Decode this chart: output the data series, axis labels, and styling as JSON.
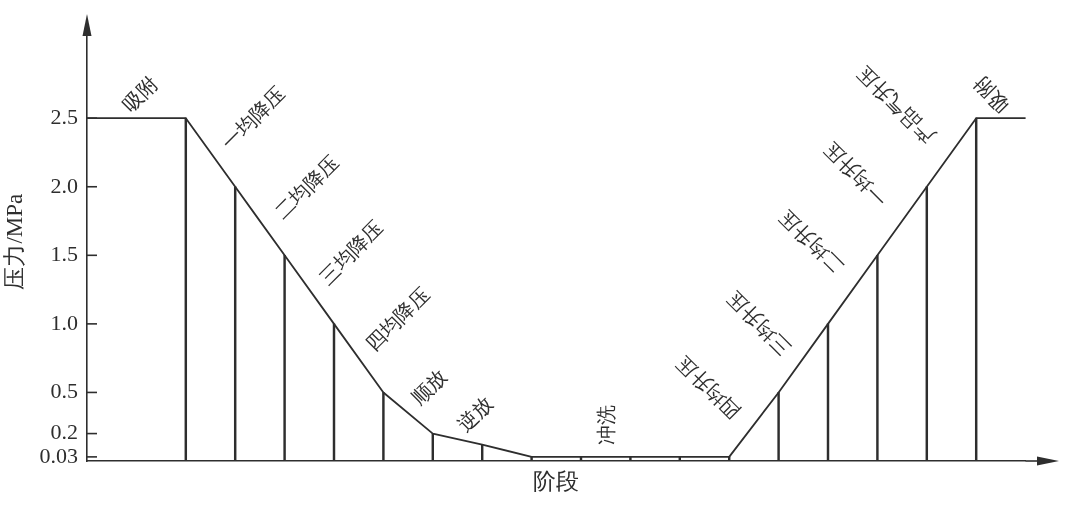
{
  "chart_data": {
    "type": "line",
    "xlabel": "阶段",
    "ylabel": "压力/MPa",
    "categories": [
      null,
      null,
      null,
      null,
      null,
      null,
      null,
      null,
      null,
      null,
      null,
      null,
      null,
      null,
      null,
      null,
      null,
      null,
      null,
      null
    ],
    "ylim": [
      0,
      3.2
    ],
    "yticks": [
      0.03,
      0.2,
      0.5,
      {
        "value": 1,
        "label": "1.0"
      },
      1.5,
      {
        "value": 2,
        "label": "2.0"
      },
      2.5
    ],
    "tick_labels": "y",
    "series": [
      {
        "color": "#2e2e2e",
        "values": [
          2.5,
          2.5,
          2.5,
          2.0,
          1.5,
          1.0,
          0.5,
          0.2,
          0.12,
          0.03,
          0.03,
          0.03,
          0.03,
          0.03,
          0.5,
          1.0,
          1.5,
          2.0,
          2.5,
          2.5
        ]
      },
      {
        "type": "bar",
        "color": "#2e2e2e",
        "values": [
          null,
          null,
          2.5,
          2.0,
          1.5,
          1.0,
          0.5,
          0.2,
          0.12,
          0.03,
          0.03,
          0.03,
          0.03,
          0.03,
          0.5,
          1.0,
          1.5,
          2.0,
          2.5,
          null
        ]
      }
    ],
    "annotations": [
      "吸附",
      "一均降压",
      "二均降压",
      "三均降压",
      "四均降压",
      "顺放",
      "逆放",
      "冲洗",
      "四均升压",
      "三均升压",
      "二均升压",
      "一均升压",
      "产品气升压",
      "吸附"
    ]
  }
}
